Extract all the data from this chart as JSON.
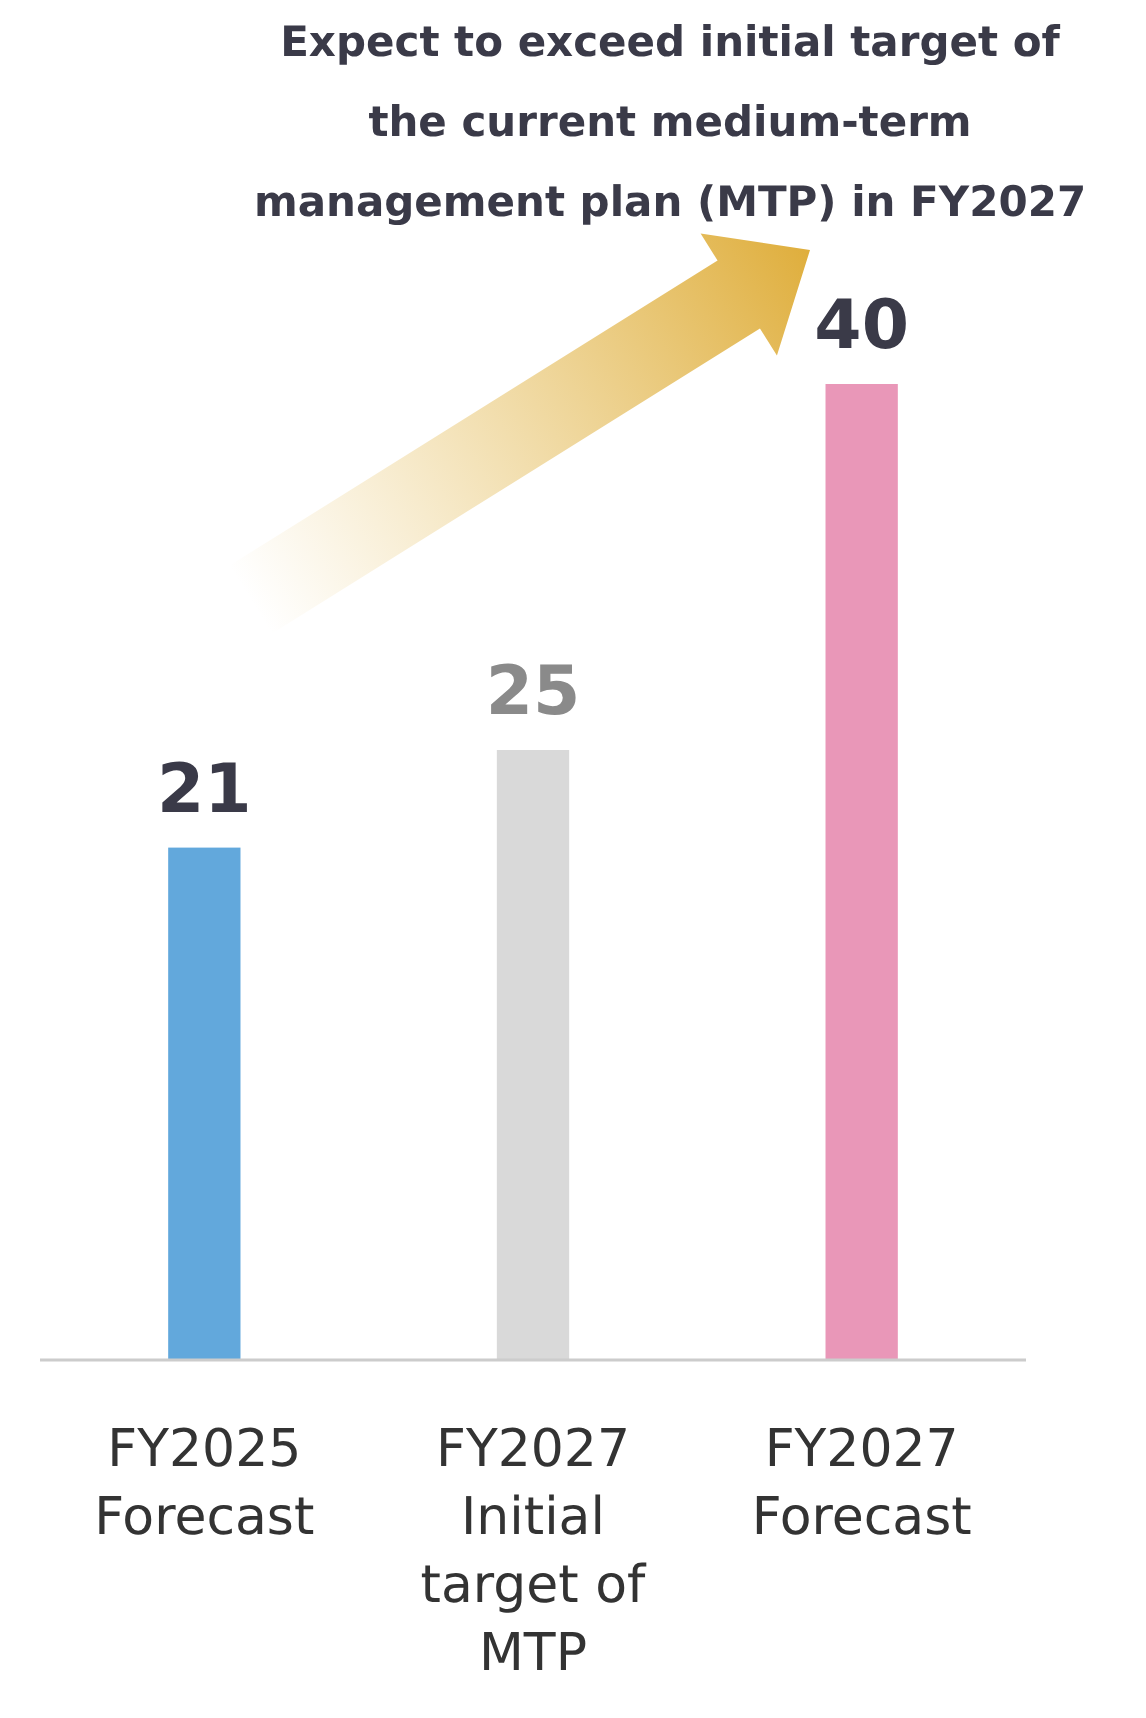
{
  "chart_data": {
    "type": "bar",
    "title": "Expect to exceed initial target of\nthe current medium-term\nmanagement plan (MTP) in FY2027",
    "categories": [
      "FY2025\nForecast",
      "FY2027\nInitial\ntarget of\nMTP",
      "FY2027\nForecast"
    ],
    "values": [
      21,
      25,
      40
    ],
    "colors": [
      "#62a8dc",
      "#d9d9d9",
      "#e997b8"
    ],
    "data_labels": true
  }
}
